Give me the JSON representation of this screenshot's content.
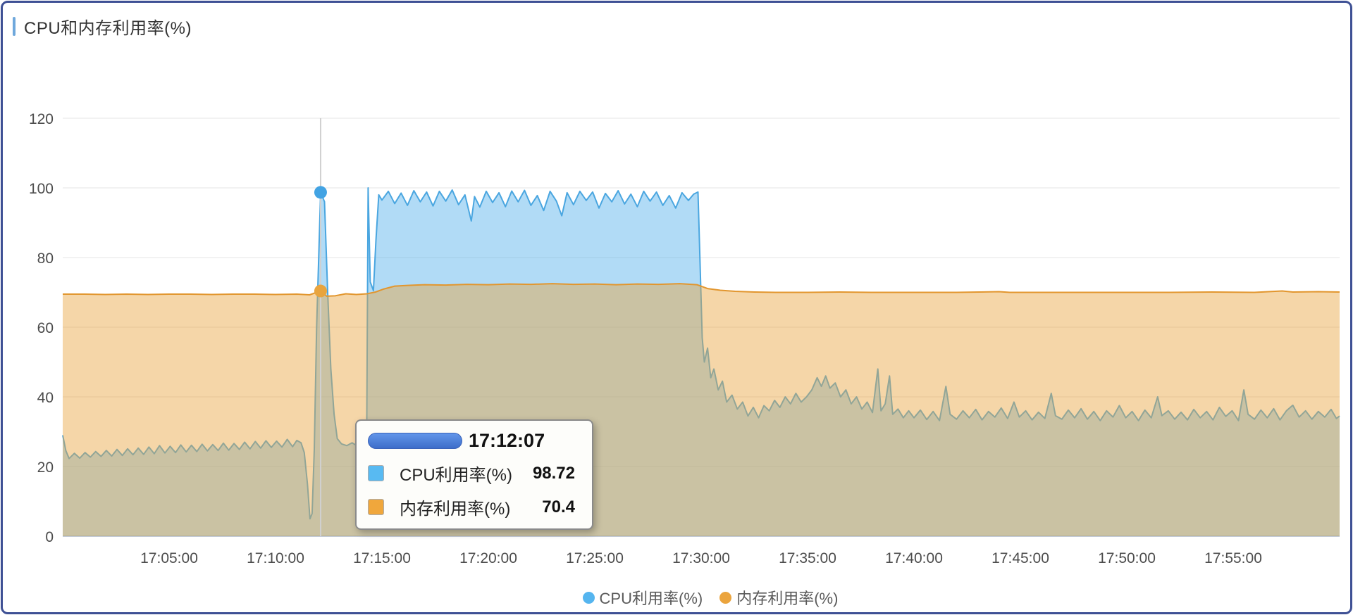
{
  "header": {
    "title": "CPU和内存利用率(%)",
    "accent_color": "#6fa8dc"
  },
  "chart_data": {
    "type": "area",
    "title": "CPU和内存利用率(%)",
    "grid": true,
    "legend_position": "bottom",
    "x_axis": {
      "unit": "time",
      "range_minutes": [
        0,
        60
      ],
      "ticks": [
        "17:05:00",
        "17:10:00",
        "17:15:00",
        "17:20:00",
        "17:25:00",
        "17:30:00",
        "17:35:00",
        "17:40:00",
        "17:45:00",
        "17:50:00",
        "17:55:00"
      ],
      "tick_minutes": [
        5,
        10,
        15,
        20,
        25,
        30,
        35,
        40,
        45,
        50,
        55
      ]
    },
    "y_axis": {
      "range": [
        0,
        120
      ],
      "ticks": [
        0,
        20,
        40,
        60,
        80,
        100,
        120
      ]
    },
    "series": [
      {
        "id": "cpu",
        "name": "CPU利用率(%)",
        "color": "#4aa6e0",
        "fill": "rgba(82,175,235,0.45)",
        "points": [
          [
            0,
            29
          ],
          [
            0.15,
            24.5
          ],
          [
            0.3,
            22.3
          ],
          [
            0.55,
            23.8
          ],
          [
            0.8,
            22.4
          ],
          [
            1.05,
            24
          ],
          [
            1.3,
            22.7
          ],
          [
            1.55,
            24.3
          ],
          [
            1.8,
            22.9
          ],
          [
            2.05,
            24.6
          ],
          [
            2.3,
            23
          ],
          [
            2.55,
            24.9
          ],
          [
            2.8,
            23.2
          ],
          [
            3.05,
            25.1
          ],
          [
            3.3,
            23.4
          ],
          [
            3.55,
            25.3
          ],
          [
            3.8,
            23.5
          ],
          [
            4.05,
            25.6
          ],
          [
            4.3,
            23.7
          ],
          [
            4.55,
            26
          ],
          [
            4.8,
            23.9
          ],
          [
            5.05,
            25.8
          ],
          [
            5.3,
            24
          ],
          [
            5.55,
            26.2
          ],
          [
            5.8,
            24.2
          ],
          [
            6.05,
            26.1
          ],
          [
            6.3,
            24.3
          ],
          [
            6.55,
            26.4
          ],
          [
            6.8,
            24.5
          ],
          [
            7.05,
            26.3
          ],
          [
            7.3,
            24.6
          ],
          [
            7.55,
            26.7
          ],
          [
            7.8,
            24.7
          ],
          [
            8.05,
            26.6
          ],
          [
            8.3,
            24.9
          ],
          [
            8.55,
            27
          ],
          [
            8.8,
            25.1
          ],
          [
            9.05,
            27.2
          ],
          [
            9.3,
            25.3
          ],
          [
            9.55,
            27.4
          ],
          [
            9.8,
            25.5
          ],
          [
            10.05,
            27.3
          ],
          [
            10.3,
            25.6
          ],
          [
            10.55,
            27.8
          ],
          [
            10.8,
            25.7
          ],
          [
            11,
            27.5
          ],
          [
            11.2,
            26.8
          ],
          [
            11.35,
            24
          ],
          [
            11.5,
            15
          ],
          [
            11.62,
            5
          ],
          [
            11.72,
            6.5
          ],
          [
            11.82,
            25
          ],
          [
            11.93,
            60
          ],
          [
            12.118,
            98.72
          ],
          [
            12.3,
            96
          ],
          [
            12.45,
            70
          ],
          [
            12.6,
            48
          ],
          [
            12.75,
            35
          ],
          [
            12.9,
            28
          ],
          [
            13.1,
            26.5
          ],
          [
            13.35,
            26
          ],
          [
            13.6,
            26.8
          ],
          [
            13.85,
            25.9
          ],
          [
            14.1,
            26.3
          ],
          [
            14.28,
            27
          ],
          [
            14.35,
            100
          ],
          [
            14.45,
            73
          ],
          [
            14.6,
            70.5
          ],
          [
            14.72,
            85
          ],
          [
            14.85,
            98
          ],
          [
            15,
            96.5
          ],
          [
            15.3,
            99
          ],
          [
            15.6,
            95.5
          ],
          [
            15.9,
            98.5
          ],
          [
            16.2,
            95
          ],
          [
            16.5,
            99.2
          ],
          [
            16.8,
            96
          ],
          [
            17.1,
            98.8
          ],
          [
            17.4,
            94.8
          ],
          [
            17.7,
            99
          ],
          [
            18,
            96.2
          ],
          [
            18.3,
            99.4
          ],
          [
            18.6,
            95.2
          ],
          [
            18.9,
            98
          ],
          [
            19.2,
            90.5
          ],
          [
            19.35,
            97.5
          ],
          [
            19.6,
            94.5
          ],
          [
            19.9,
            99
          ],
          [
            20.2,
            95.8
          ],
          [
            20.5,
            98.6
          ],
          [
            20.8,
            94.6
          ],
          [
            21.1,
            99.1
          ],
          [
            21.4,
            96
          ],
          [
            21.7,
            99.3
          ],
          [
            22,
            95
          ],
          [
            22.3,
            97.8
          ],
          [
            22.6,
            93.5
          ],
          [
            22.9,
            99
          ],
          [
            23.2,
            96.2
          ],
          [
            23.45,
            92
          ],
          [
            23.7,
            98.6
          ],
          [
            24,
            95.2
          ],
          [
            24.3,
            99
          ],
          [
            24.6,
            96.4
          ],
          [
            24.9,
            98.8
          ],
          [
            25.2,
            94.2
          ],
          [
            25.5,
            98.4
          ],
          [
            25.8,
            96
          ],
          [
            26.1,
            99.2
          ],
          [
            26.4,
            95.4
          ],
          [
            26.7,
            98.2
          ],
          [
            27,
            94.6
          ],
          [
            27.3,
            99
          ],
          [
            27.6,
            96.2
          ],
          [
            27.9,
            98.8
          ],
          [
            28.2,
            95
          ],
          [
            28.5,
            97.8
          ],
          [
            28.8,
            94.2
          ],
          [
            29.1,
            98.6
          ],
          [
            29.4,
            96.4
          ],
          [
            29.65,
            98.2
          ],
          [
            29.85,
            98.8
          ],
          [
            29.95,
            78
          ],
          [
            30.05,
            57
          ],
          [
            30.15,
            50
          ],
          [
            30.3,
            54
          ],
          [
            30.45,
            45.5
          ],
          [
            30.6,
            48
          ],
          [
            30.8,
            42
          ],
          [
            31,
            44.5
          ],
          [
            31.2,
            38.5
          ],
          [
            31.45,
            40.5
          ],
          [
            31.7,
            36.5
          ],
          [
            31.95,
            38.5
          ],
          [
            32.2,
            34.5
          ],
          [
            32.45,
            37
          ],
          [
            32.7,
            34
          ],
          [
            32.95,
            37.5
          ],
          [
            33.2,
            36
          ],
          [
            33.45,
            39
          ],
          [
            33.7,
            37
          ],
          [
            33.95,
            40
          ],
          [
            34.2,
            38
          ],
          [
            34.45,
            41
          ],
          [
            34.7,
            38.5
          ],
          [
            34.95,
            40
          ],
          [
            35.2,
            42
          ],
          [
            35.45,
            45.5
          ],
          [
            35.65,
            43
          ],
          [
            35.85,
            46
          ],
          [
            36.05,
            42.5
          ],
          [
            36.3,
            44
          ],
          [
            36.55,
            40
          ],
          [
            36.8,
            42
          ],
          [
            37.05,
            38
          ],
          [
            37.3,
            40
          ],
          [
            37.55,
            36.5
          ],
          [
            37.8,
            38.5
          ],
          [
            38.05,
            35.5
          ],
          [
            38.3,
            48
          ],
          [
            38.45,
            36
          ],
          [
            38.65,
            38
          ],
          [
            38.85,
            46
          ],
          [
            39,
            35
          ],
          [
            39.25,
            36.5
          ],
          [
            39.5,
            34
          ],
          [
            39.75,
            36
          ],
          [
            40,
            34
          ],
          [
            40.3,
            36.2
          ],
          [
            40.6,
            33.5
          ],
          [
            40.9,
            35.8
          ],
          [
            41.2,
            33.2
          ],
          [
            41.5,
            43
          ],
          [
            41.7,
            35
          ],
          [
            42,
            33.6
          ],
          [
            42.3,
            36
          ],
          [
            42.6,
            34
          ],
          [
            42.9,
            36.4
          ],
          [
            43.2,
            33.4
          ],
          [
            43.5,
            35.8
          ],
          [
            43.8,
            34.2
          ],
          [
            44.1,
            36.8
          ],
          [
            44.4,
            33.8
          ],
          [
            44.7,
            38.5
          ],
          [
            44.95,
            34.2
          ],
          [
            45.25,
            36
          ],
          [
            45.55,
            33.4
          ],
          [
            45.85,
            35.6
          ],
          [
            46.15,
            33.8
          ],
          [
            46.45,
            41
          ],
          [
            46.65,
            34.6
          ],
          [
            46.95,
            33.6
          ],
          [
            47.25,
            36.2
          ],
          [
            47.55,
            34
          ],
          [
            47.85,
            36.6
          ],
          [
            48.15,
            33.6
          ],
          [
            48.45,
            35.8
          ],
          [
            48.75,
            33.2
          ],
          [
            49.05,
            36
          ],
          [
            49.35,
            34.2
          ],
          [
            49.65,
            37.5
          ],
          [
            49.95,
            34
          ],
          [
            50.25,
            35.8
          ],
          [
            50.55,
            33.2
          ],
          [
            50.85,
            36.2
          ],
          [
            51.15,
            34
          ],
          [
            51.45,
            40
          ],
          [
            51.65,
            34.6
          ],
          [
            51.95,
            36
          ],
          [
            52.25,
            33.6
          ],
          [
            52.55,
            35.6
          ],
          [
            52.85,
            33.4
          ],
          [
            53.15,
            36.4
          ],
          [
            53.45,
            34
          ],
          [
            53.75,
            35.8
          ],
          [
            54.05,
            33.4
          ],
          [
            54.35,
            37
          ],
          [
            54.65,
            34.4
          ],
          [
            54.95,
            36
          ],
          [
            55.25,
            33.2
          ],
          [
            55.5,
            42
          ],
          [
            55.7,
            35
          ],
          [
            56,
            33.6
          ],
          [
            56.3,
            36.2
          ],
          [
            56.6,
            34
          ],
          [
            56.9,
            36.6
          ],
          [
            57.2,
            33.4
          ],
          [
            57.5,
            36
          ],
          [
            57.8,
            37.6
          ],
          [
            58.1,
            34.2
          ],
          [
            58.4,
            36
          ],
          [
            58.7,
            33.6
          ],
          [
            59,
            35.8
          ],
          [
            59.3,
            34.2
          ],
          [
            59.6,
            36.4
          ],
          [
            59.85,
            33.8
          ],
          [
            60,
            34.5
          ]
        ]
      },
      {
        "id": "memory",
        "name": "内存利用率(%)",
        "color": "#e2962e",
        "fill": "rgba(232,164,62,0.45)",
        "points": [
          [
            0,
            69.5
          ],
          [
            1,
            69.5
          ],
          [
            2,
            69.4
          ],
          [
            3,
            69.5
          ],
          [
            4,
            69.4
          ],
          [
            5,
            69.5
          ],
          [
            6,
            69.5
          ],
          [
            7,
            69.4
          ],
          [
            8,
            69.5
          ],
          [
            9,
            69.5
          ],
          [
            10,
            69.4
          ],
          [
            11,
            69.5
          ],
          [
            11.6,
            69.3
          ],
          [
            12.118,
            70.4
          ],
          [
            12.4,
            68.9
          ],
          [
            12.8,
            69
          ],
          [
            13.3,
            69.6
          ],
          [
            13.8,
            69.4
          ],
          [
            14.3,
            69.6
          ],
          [
            14.7,
            70.1
          ],
          [
            15.1,
            71
          ],
          [
            15.6,
            71.8
          ],
          [
            16.2,
            72
          ],
          [
            17,
            72.2
          ],
          [
            18,
            72.1
          ],
          [
            19,
            72.3
          ],
          [
            20,
            72.2
          ],
          [
            21,
            72.4
          ],
          [
            22,
            72.3
          ],
          [
            23,
            72.5
          ],
          [
            24,
            72.3
          ],
          [
            25,
            72.4
          ],
          [
            26,
            72.2
          ],
          [
            27,
            72.4
          ],
          [
            28,
            72.3
          ],
          [
            29,
            72.5
          ],
          [
            29.8,
            72.2
          ],
          [
            30.3,
            71.1
          ],
          [
            30.9,
            70.6
          ],
          [
            31.6,
            70.3
          ],
          [
            32.5,
            70.1
          ],
          [
            33.5,
            70
          ],
          [
            35,
            70
          ],
          [
            36.5,
            70.1
          ],
          [
            38,
            70
          ],
          [
            40,
            70
          ],
          [
            42,
            70
          ],
          [
            44,
            70.2
          ],
          [
            44.5,
            70
          ],
          [
            46,
            70
          ],
          [
            48,
            70
          ],
          [
            50,
            70
          ],
          [
            52,
            70
          ],
          [
            54,
            70.1
          ],
          [
            56,
            70
          ],
          [
            57.3,
            70.4
          ],
          [
            57.8,
            70.1
          ],
          [
            59,
            70.2
          ],
          [
            60,
            70.1
          ]
        ]
      }
    ],
    "hover": {
      "time_label": "17:12:07",
      "time_minutes": 12.118,
      "crosshair_color": "#d0d0d0",
      "points": [
        {
          "series_id": "cpu",
          "value": 98.72,
          "color": "#42a3e3"
        },
        {
          "series_id": "memory",
          "value": 70.4,
          "color": "#e8a43e"
        }
      ]
    }
  },
  "tooltip": {
    "time": "17:12:07",
    "rows": [
      {
        "label": "CPU利用率(%)",
        "value": "98.72",
        "swatch": "#58baf2"
      },
      {
        "label": "内存利用率(%)",
        "value": "70.4",
        "swatch": "#f0a73c"
      }
    ]
  },
  "legend": {
    "items": [
      {
        "label": "CPU利用率(%)",
        "color": "#55b5ef"
      },
      {
        "label": "内存利用率(%)",
        "color": "#eba43d"
      }
    ]
  }
}
